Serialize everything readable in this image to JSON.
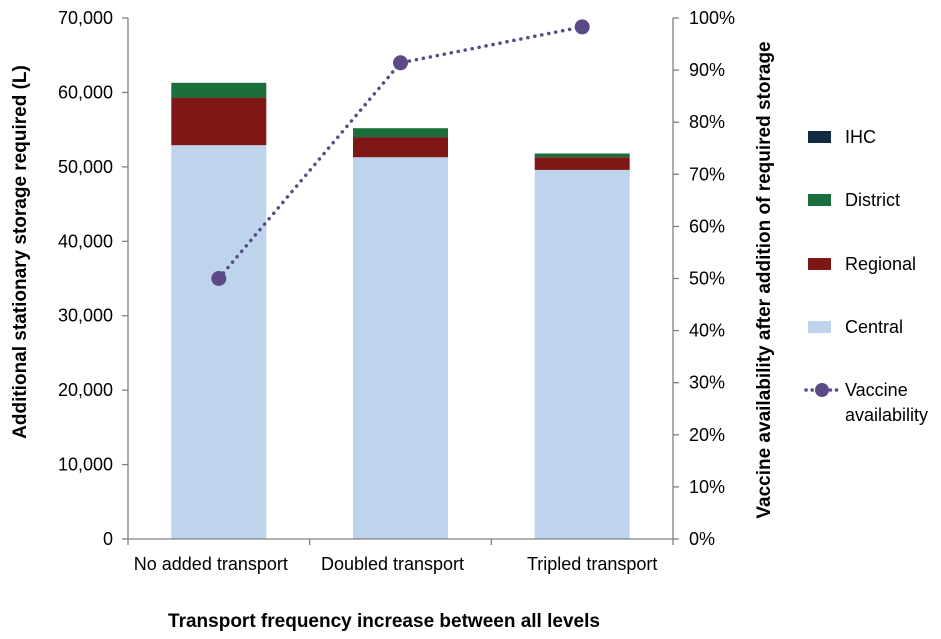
{
  "chart_data": {
    "type": "bar",
    "stacked": true,
    "categories": [
      "No added transport",
      "Doubled transport",
      "Tripled transport"
    ],
    "xlabel": "Transport frequency increase between all levels",
    "ylabel": "Additional stationary storage required (L)",
    "y2label": "Vaccine availability after addition of required storage",
    "ylim": [
      0,
      70000
    ],
    "y2lim": [
      0,
      1
    ],
    "yticks": [
      "0",
      "10,000",
      "20,000",
      "30,000",
      "40,000",
      "50,000",
      "60,000",
      "70,000"
    ],
    "y2ticks": [
      "0%",
      "10%",
      "20%",
      "30%",
      "40%",
      "50%",
      "60%",
      "70%",
      "80%",
      "90%",
      "100%"
    ],
    "grid": false,
    "legend_position": "right",
    "series": [
      {
        "name": "Central",
        "color": "#bdd4ec",
        "values": [
          52900,
          51300,
          49600
        ]
      },
      {
        "name": "Regional",
        "color": "#7f1717",
        "values": [
          6400,
          2700,
          1700
        ]
      },
      {
        "name": "District",
        "color": "#1b6e3c",
        "values": [
          2000,
          1200,
          500
        ]
      },
      {
        "name": "IHC",
        "color": "#132a45",
        "values": [
          0,
          0,
          0
        ]
      }
    ],
    "line_series": {
      "name": "Vaccine availability",
      "color": "#5c4a86",
      "axis": "right",
      "values": [
        0.5,
        0.914,
        0.983
      ]
    },
    "legend": [
      "IHC",
      "District",
      "Regional",
      "Central",
      "Vaccine availability"
    ]
  }
}
